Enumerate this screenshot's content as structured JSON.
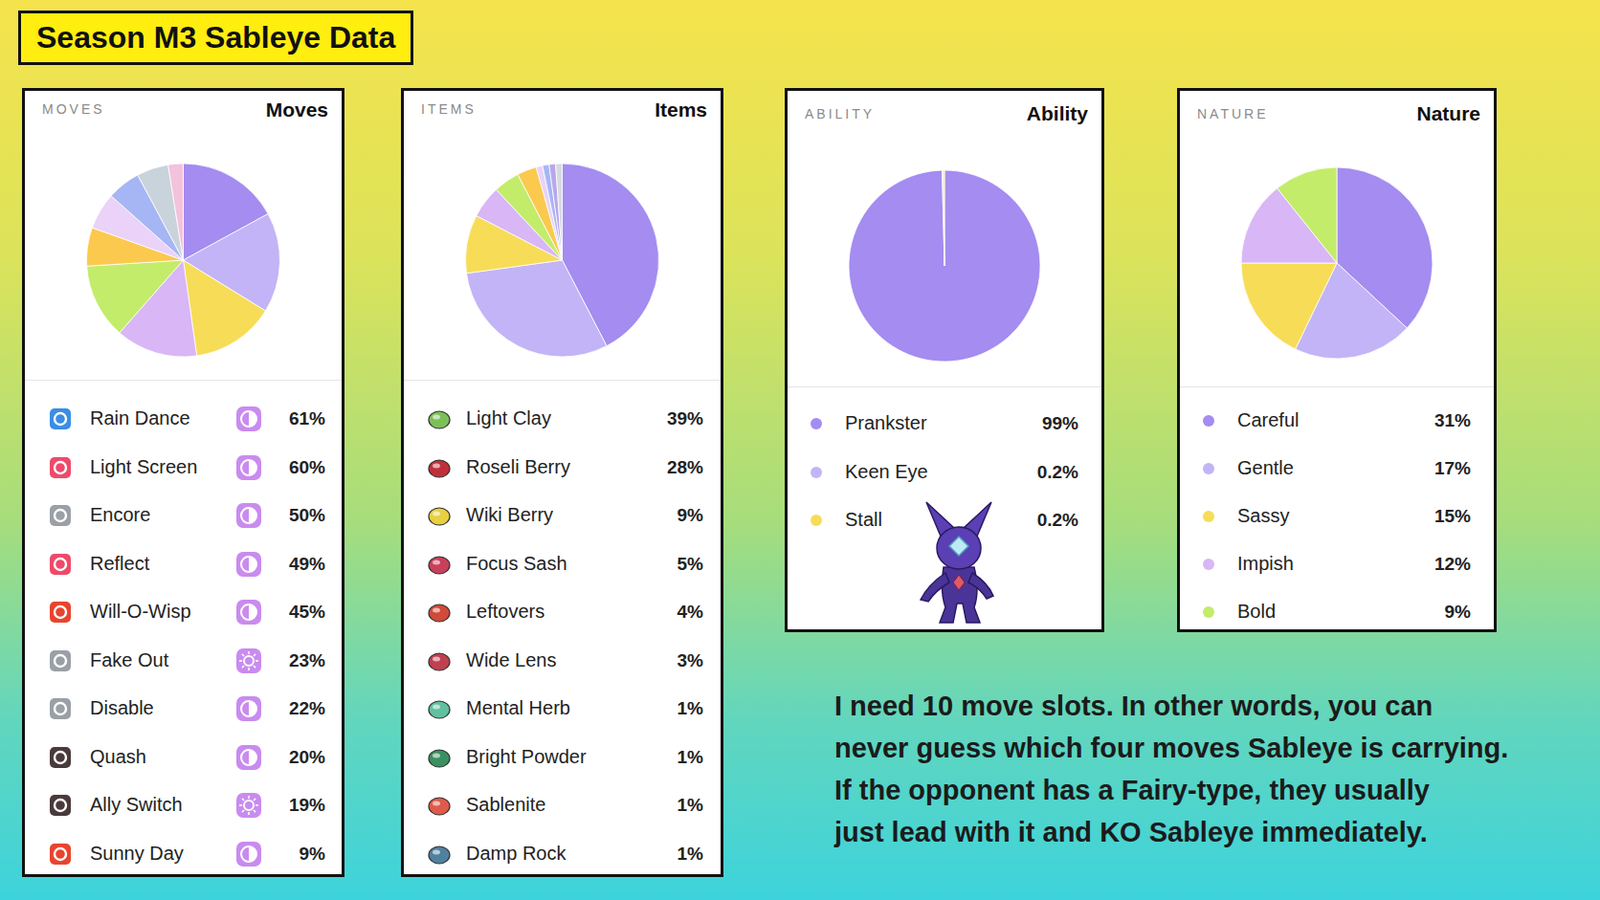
{
  "title": "Season M3 Sableye Data",
  "caption": [
    "I need 10 move slots. In other words, you can",
    "never guess which four moves Sableye is carrying.",
    "If the opponent has a Fairy-type, they usually",
    "just lead with it and KO Sableye immediately."
  ],
  "chart_data": [
    {
      "type": "pie",
      "title": "Moves",
      "subtitle": "MOVES",
      "legend": "bottom",
      "categories": [
        "Rain Dance",
        "Light Screen",
        "Encore",
        "Reflect",
        "Will-O-Wisp",
        "Fake Out",
        "Disable",
        "Quash",
        "Ally Switch",
        "Sunny Day"
      ],
      "values": [
        61,
        60,
        50,
        49,
        45,
        23,
        22,
        20,
        19,
        9
      ],
      "value_labels": [
        "61%",
        "60%",
        "50%",
        "49%",
        "45%",
        "23%",
        "22%",
        "20%",
        "19%",
        "9%"
      ],
      "colors": [
        "#a48cf0",
        "#c2b4f6",
        "#f7dc58",
        "#d9b6f6",
        "#c3ec6b",
        "#fbc94e",
        "#ead2f9",
        "#a6b6f4",
        "#c9d3dc",
        "#f3c2dc"
      ]
    },
    {
      "type": "pie",
      "title": "Items",
      "subtitle": "ITEMS",
      "legend": "bottom",
      "categories": [
        "Light Clay",
        "Roseli Berry",
        "Wiki Berry",
        "Focus Sash",
        "Leftovers",
        "Wide Lens",
        "Mental Herb",
        "Bright Powder",
        "Sablenite",
        "Damp Rock"
      ],
      "values": [
        39,
        28,
        9,
        5,
        4,
        3,
        1,
        1,
        1,
        1
      ],
      "value_labels": [
        "39%",
        "28%",
        "9%",
        "5%",
        "4%",
        "3%",
        "1%",
        "1%",
        "1%",
        "1%"
      ],
      "colors": [
        "#a48cf0",
        "#c2b4f6",
        "#f7dc58",
        "#d9b6f6",
        "#c3ec6b",
        "#fbc94e",
        "#ead2f9",
        "#a6b6f4",
        "#b9a6ee",
        "#d6dbe0"
      ]
    },
    {
      "type": "pie",
      "title": "Ability",
      "subtitle": "ABILITY",
      "legend": "bottom",
      "categories": [
        "Prankster",
        "Keen Eye",
        "Stall"
      ],
      "values": [
        99,
        0.2,
        0.2
      ],
      "value_labels": [
        "99%",
        "0.2%",
        "0.2%"
      ],
      "colors": [
        "#a48cf0",
        "#c2b4f6",
        "#f7dc58"
      ]
    },
    {
      "type": "pie",
      "title": "Nature",
      "subtitle": "NATURE",
      "legend": "bottom",
      "categories": [
        "Careful",
        "Gentle",
        "Sassy",
        "Impish",
        "Bold"
      ],
      "values": [
        31,
        17,
        15,
        12,
        9
      ],
      "value_labels": [
        "31%",
        "17%",
        "15%",
        "12%",
        "9%"
      ],
      "colors": [
        "#a48cf0",
        "#c2b4f6",
        "#f7dc58",
        "#d9b6f6",
        "#c3ec6b"
      ]
    }
  ]
}
